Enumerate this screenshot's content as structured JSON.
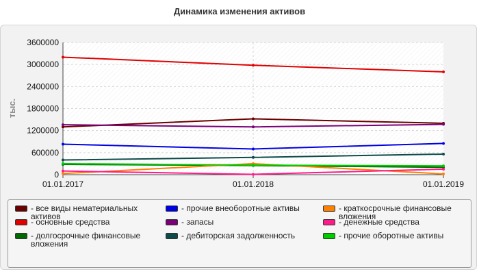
{
  "chart_data": {
    "type": "line",
    "title": "Динамика изменения активов",
    "ylabel": "тыс.",
    "ylim": [
      0,
      3600000
    ],
    "yticks": [
      "0",
      "600000",
      "1200000",
      "1800000",
      "2400000",
      "3000000",
      "3600000"
    ],
    "x": [
      "01.01.2017",
      "01.01.2018",
      "01.01.2019"
    ],
    "grid": true,
    "legend_position": "bottom",
    "series": [
      {
        "name": "- все виды нематериальных активов",
        "color": "#6b0000",
        "values": [
          1300000,
          1520000,
          1400000
        ]
      },
      {
        "name": "- основные средства",
        "color": "#e00000",
        "values": [
          3200000,
          2980000,
          2800000
        ]
      },
      {
        "name": "- долгосрочные финансовые вложения",
        "color": "#006a00",
        "values": [
          280000,
          250000,
          200000
        ]
      },
      {
        "name": "- прочие внеоборотные активы",
        "color": "#0000e6",
        "values": [
          830000,
          700000,
          850000
        ]
      },
      {
        "name": "- запасы",
        "color": "#7a0078",
        "values": [
          1360000,
          1300000,
          1370000
        ]
      },
      {
        "name": "- дебиторская задолженность",
        "color": "#0d4a4a",
        "values": [
          400000,
          470000,
          560000
        ]
      },
      {
        "name": "- краткосрочные финансовые вложения",
        "color": "#ff8000",
        "values": [
          30000,
          300000,
          20000
        ]
      },
      {
        "name": "- денежные средства",
        "color": "#ff1a8c",
        "values": [
          100000,
          10000,
          150000
        ]
      },
      {
        "name": "- прочие оборотные активы",
        "color": "#00cc00",
        "values": [
          300000,
          260000,
          240000
        ]
      }
    ]
  }
}
